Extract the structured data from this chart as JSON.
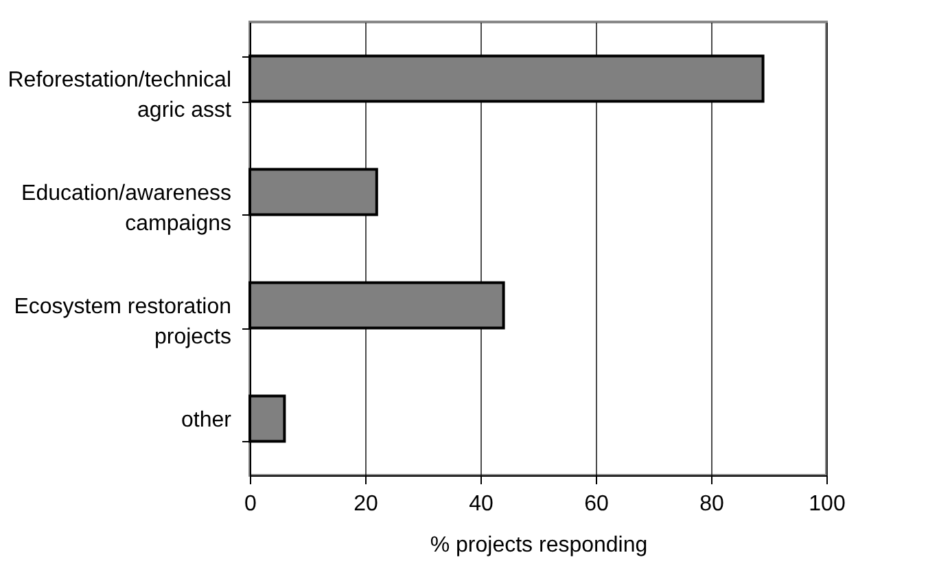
{
  "chart_data": {
    "type": "bar",
    "orientation": "horizontal",
    "xlabel": "% projects responding",
    "categories": [
      "Reforestation/technical agric asst",
      "Education/awareness campaigns",
      "Ecosystem restoration projects",
      "other"
    ],
    "values": [
      89,
      22,
      44,
      6
    ],
    "color": "#808080",
    "xlim": [
      0,
      100
    ],
    "xticks": [
      0,
      20,
      40,
      60,
      80,
      100
    ],
    "grid": "x"
  }
}
